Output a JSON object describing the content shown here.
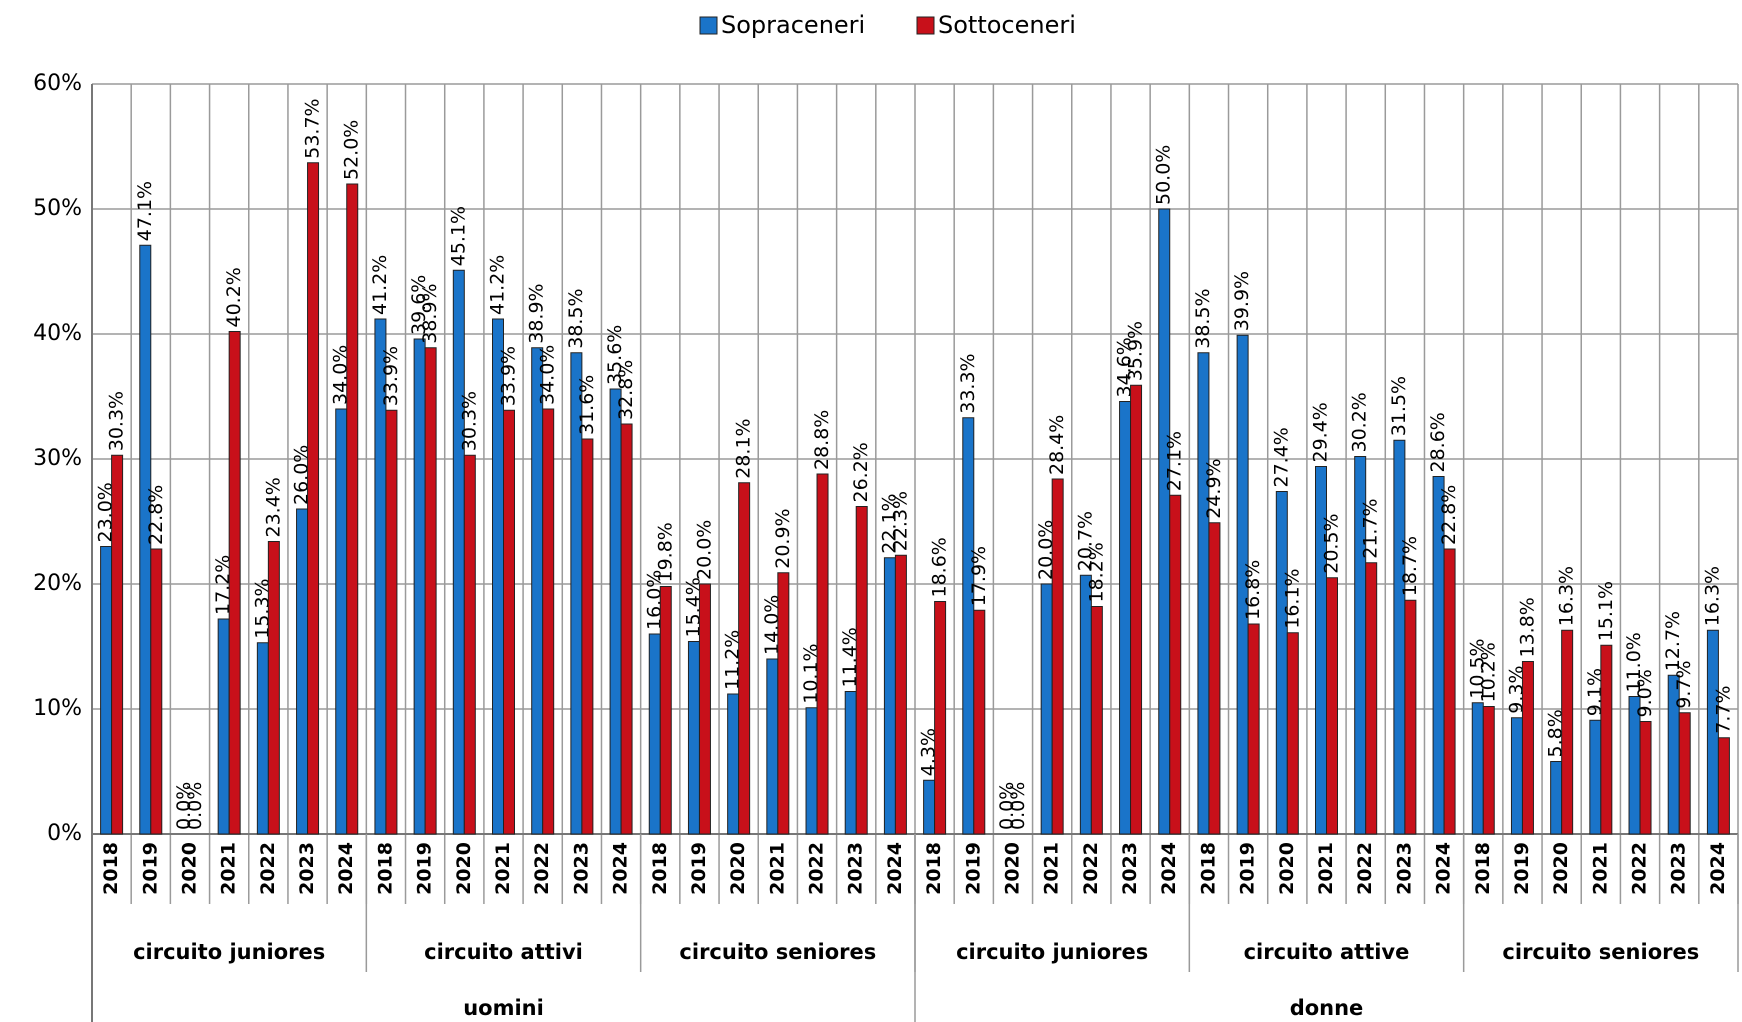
{
  "chart_data": {
    "type": "bar",
    "groups": [
      {
        "label": "uomini",
        "subgroups": [
          {
            "label": "circuito juniores",
            "categories": [
              "2018",
              "2019",
              "2020",
              "2021",
              "2022",
              "2023",
              "2024"
            ]
          },
          {
            "label": "circuito attivi",
            "categories": [
              "2018",
              "2019",
              "2020",
              "2021",
              "2022",
              "2023",
              "2024"
            ]
          },
          {
            "label": "circuito seniores",
            "categories": [
              "2018",
              "2019",
              "2020",
              "2021",
              "2022",
              "2023",
              "2024"
            ]
          }
        ]
      },
      {
        "label": "donne",
        "subgroups": [
          {
            "label": "circuito juniores",
            "categories": [
              "2018",
              "2019",
              "2020",
              "2021",
              "2022",
              "2023",
              "2024"
            ]
          },
          {
            "label": "circuito attive",
            "categories": [
              "2018",
              "2019",
              "2020",
              "2021",
              "2022",
              "2023",
              "2024"
            ]
          },
          {
            "label": "circuito seniores",
            "categories": [
              "2018",
              "2019",
              "2020",
              "2021",
              "2022",
              "2023",
              "2024"
            ]
          }
        ]
      }
    ],
    "series": [
      {
        "name": "Sopraceneri",
        "color": "#1a74c9",
        "values": [
          23.0,
          47.1,
          0.0,
          17.2,
          15.3,
          26.0,
          34.0,
          41.2,
          39.6,
          45.1,
          41.2,
          38.9,
          38.5,
          35.6,
          16.0,
          15.4,
          11.2,
          14.0,
          10.1,
          11.4,
          22.1,
          4.3,
          33.3,
          0.0,
          20.0,
          20.7,
          34.6,
          50.0,
          38.5,
          39.9,
          27.4,
          29.4,
          30.2,
          31.5,
          28.6,
          10.5,
          9.3,
          5.8,
          9.1,
          11.0,
          12.7,
          16.3
        ],
        "value_labels": [
          "23.0%",
          "47.1%",
          "0.0%",
          "17.2%",
          "15.3%",
          "26.0%",
          "34.0%",
          "41.2%",
          "39.6%",
          "45.1%",
          "41.2%",
          "38.9%",
          "38.5%",
          "35.6%",
          "16.0%",
          "15.4%",
          "11.2%",
          "14.0%",
          "10.1%",
          "11.4%",
          "22.1%",
          "4.3%",
          "33.3%",
          "0.0%",
          "20.0%",
          "20.7%",
          "34.6%",
          "50.0%",
          "38.5%",
          "39.9%",
          "27.4%",
          "29.4%",
          "30.2%",
          "31.5%",
          "28.6%",
          "10.5%",
          "9.3%",
          "5.8%",
          "9.1%",
          "11.0%",
          "12.7%",
          "16.3%"
        ]
      },
      {
        "name": "Sottoceneri",
        "color": "#c8101a",
        "values": [
          30.3,
          22.8,
          0.0,
          40.2,
          23.4,
          53.7,
          52.0,
          33.9,
          38.9,
          30.3,
          33.9,
          34.0,
          31.6,
          32.8,
          19.8,
          20.0,
          28.1,
          20.9,
          28.8,
          26.2,
          22.3,
          18.6,
          17.9,
          0.0,
          28.4,
          18.2,
          35.9,
          27.1,
          24.9,
          16.8,
          16.1,
          20.5,
          21.7,
          18.7,
          22.8,
          10.2,
          13.8,
          16.3,
          15.1,
          9.0,
          9.7,
          7.7
        ],
        "value_labels": [
          "30.3%",
          "22.8%",
          "0.0%",
          "40.2%",
          "23.4%",
          "53.7%",
          "52.0%",
          "33.9%",
          "38.9%",
          "30.3%",
          "33.9%",
          "34.0%",
          "31.6%",
          "32.8%",
          "19.8%",
          "20.0%",
          "28.1%",
          "20.9%",
          "28.8%",
          "26.2%",
          "22.3%",
          "18.6%",
          "17.9%",
          "0.0%",
          "28.4%",
          "18.2%",
          "35.9%",
          "27.1%",
          "24.9%",
          "16.8%",
          "16.1%",
          "20.5%",
          "21.7%",
          "18.7%",
          "22.8%",
          "10.2%",
          "13.8%",
          "16.3%",
          "15.1%",
          "9.0%",
          "9.7%",
          "7.7%"
        ]
      }
    ],
    "ylim": [
      0,
      60
    ],
    "yticks": [
      {
        "value": 0,
        "label": "0%"
      },
      {
        "value": 10,
        "label": "10%"
      },
      {
        "value": 20,
        "label": "20%"
      },
      {
        "value": 30,
        "label": "30%"
      },
      {
        "value": 40,
        "label": "40%"
      },
      {
        "value": 50,
        "label": "50%"
      },
      {
        "value": 60,
        "label": "60%"
      }
    ],
    "grid": true,
    "legend": "top"
  }
}
